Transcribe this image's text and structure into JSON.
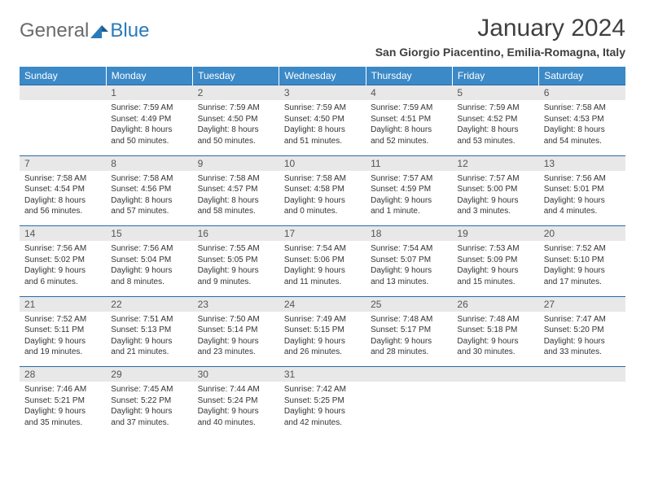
{
  "logo": {
    "text1": "General",
    "text2": "Blue"
  },
  "title": "January 2024",
  "location": "San Giorgio Piacentino, Emilia-Romagna, Italy",
  "colors": {
    "header_bg": "#3b89c7",
    "header_text": "#ffffff",
    "daynum_bg": "#e8e8e8",
    "border": "#2a6aa6",
    "logo_gray": "#6b6b6b",
    "logo_blue": "#2a7ab9",
    "text": "#333333"
  },
  "weekdays": [
    "Sunday",
    "Monday",
    "Tuesday",
    "Wednesday",
    "Thursday",
    "Friday",
    "Saturday"
  ],
  "weeks": [
    {
      "nums": [
        "",
        "1",
        "2",
        "3",
        "4",
        "5",
        "6"
      ],
      "cells": [
        "",
        "Sunrise: 7:59 AM\nSunset: 4:49 PM\nDaylight: 8 hours and 50 minutes.",
        "Sunrise: 7:59 AM\nSunset: 4:50 PM\nDaylight: 8 hours and 50 minutes.",
        "Sunrise: 7:59 AM\nSunset: 4:50 PM\nDaylight: 8 hours and 51 minutes.",
        "Sunrise: 7:59 AM\nSunset: 4:51 PM\nDaylight: 8 hours and 52 minutes.",
        "Sunrise: 7:59 AM\nSunset: 4:52 PM\nDaylight: 8 hours and 53 minutes.",
        "Sunrise: 7:58 AM\nSunset: 4:53 PM\nDaylight: 8 hours and 54 minutes."
      ]
    },
    {
      "nums": [
        "7",
        "8",
        "9",
        "10",
        "11",
        "12",
        "13"
      ],
      "cells": [
        "Sunrise: 7:58 AM\nSunset: 4:54 PM\nDaylight: 8 hours and 56 minutes.",
        "Sunrise: 7:58 AM\nSunset: 4:56 PM\nDaylight: 8 hours and 57 minutes.",
        "Sunrise: 7:58 AM\nSunset: 4:57 PM\nDaylight: 8 hours and 58 minutes.",
        "Sunrise: 7:58 AM\nSunset: 4:58 PM\nDaylight: 9 hours and 0 minutes.",
        "Sunrise: 7:57 AM\nSunset: 4:59 PM\nDaylight: 9 hours and 1 minute.",
        "Sunrise: 7:57 AM\nSunset: 5:00 PM\nDaylight: 9 hours and 3 minutes.",
        "Sunrise: 7:56 AM\nSunset: 5:01 PM\nDaylight: 9 hours and 4 minutes."
      ]
    },
    {
      "nums": [
        "14",
        "15",
        "16",
        "17",
        "18",
        "19",
        "20"
      ],
      "cells": [
        "Sunrise: 7:56 AM\nSunset: 5:02 PM\nDaylight: 9 hours and 6 minutes.",
        "Sunrise: 7:56 AM\nSunset: 5:04 PM\nDaylight: 9 hours and 8 minutes.",
        "Sunrise: 7:55 AM\nSunset: 5:05 PM\nDaylight: 9 hours and 9 minutes.",
        "Sunrise: 7:54 AM\nSunset: 5:06 PM\nDaylight: 9 hours and 11 minutes.",
        "Sunrise: 7:54 AM\nSunset: 5:07 PM\nDaylight: 9 hours and 13 minutes.",
        "Sunrise: 7:53 AM\nSunset: 5:09 PM\nDaylight: 9 hours and 15 minutes.",
        "Sunrise: 7:52 AM\nSunset: 5:10 PM\nDaylight: 9 hours and 17 minutes."
      ]
    },
    {
      "nums": [
        "21",
        "22",
        "23",
        "24",
        "25",
        "26",
        "27"
      ],
      "cells": [
        "Sunrise: 7:52 AM\nSunset: 5:11 PM\nDaylight: 9 hours and 19 minutes.",
        "Sunrise: 7:51 AM\nSunset: 5:13 PM\nDaylight: 9 hours and 21 minutes.",
        "Sunrise: 7:50 AM\nSunset: 5:14 PM\nDaylight: 9 hours and 23 minutes.",
        "Sunrise: 7:49 AM\nSunset: 5:15 PM\nDaylight: 9 hours and 26 minutes.",
        "Sunrise: 7:48 AM\nSunset: 5:17 PM\nDaylight: 9 hours and 28 minutes.",
        "Sunrise: 7:48 AM\nSunset: 5:18 PM\nDaylight: 9 hours and 30 minutes.",
        "Sunrise: 7:47 AM\nSunset: 5:20 PM\nDaylight: 9 hours and 33 minutes."
      ]
    },
    {
      "nums": [
        "28",
        "29",
        "30",
        "31",
        "",
        "",
        ""
      ],
      "cells": [
        "Sunrise: 7:46 AM\nSunset: 5:21 PM\nDaylight: 9 hours and 35 minutes.",
        "Sunrise: 7:45 AM\nSunset: 5:22 PM\nDaylight: 9 hours and 37 minutes.",
        "Sunrise: 7:44 AM\nSunset: 5:24 PM\nDaylight: 9 hours and 40 minutes.",
        "Sunrise: 7:42 AM\nSunset: 5:25 PM\nDaylight: 9 hours and 42 minutes.",
        "",
        "",
        ""
      ]
    }
  ]
}
